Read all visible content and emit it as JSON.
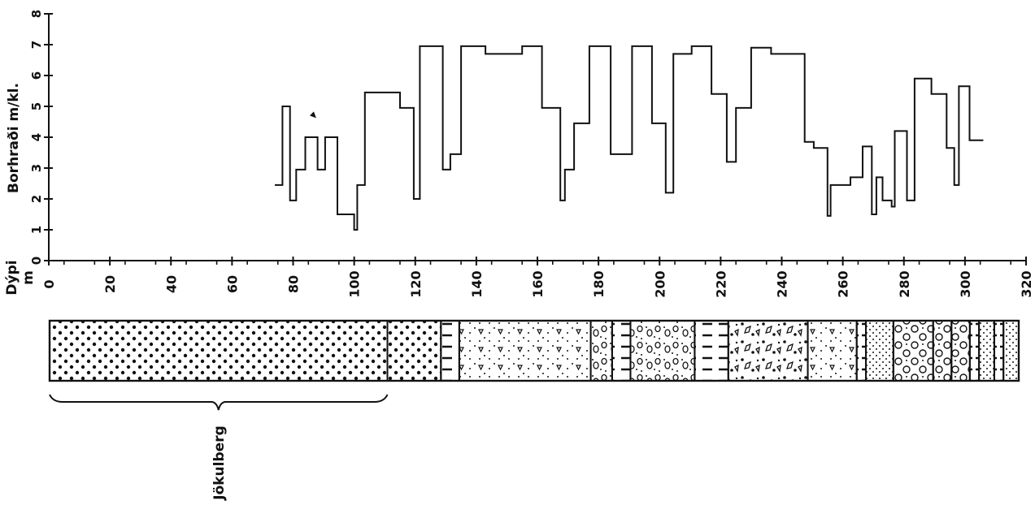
{
  "chart_data": {
    "type": "line",
    "ylabel": "Borhraði  m/kl.",
    "xlabel_line1": "Dýpi",
    "xlabel_line2": "m",
    "xlim": [
      0,
      320
    ],
    "ylim": [
      0,
      8
    ],
    "x_ticks": [
      0,
      20,
      40,
      60,
      80,
      100,
      120,
      140,
      160,
      180,
      200,
      220,
      240,
      260,
      280,
      300,
      320
    ],
    "y_ticks": [
      0,
      1,
      2,
      3,
      4,
      5,
      6,
      7,
      8
    ],
    "series": [
      {
        "points": [
          [
            74,
            2.45
          ],
          [
            76.5,
            2.45
          ],
          [
            76.5,
            5.0
          ],
          [
            79,
            5.0
          ],
          [
            79,
            1.95
          ],
          [
            81,
            1.95
          ],
          [
            81,
            2.95
          ],
          [
            84,
            2.95
          ],
          [
            84,
            4.0
          ],
          [
            88,
            4.0
          ],
          [
            88,
            2.95
          ],
          [
            90.5,
            2.95
          ],
          [
            90.5,
            4.0
          ],
          [
            94.5,
            4.0
          ],
          [
            94.5,
            1.5
          ],
          [
            100,
            1.5
          ],
          [
            100,
            1.0
          ],
          [
            101,
            1.0
          ],
          [
            101,
            2.45
          ],
          [
            103.5,
            2.45
          ],
          [
            103.5,
            5.45
          ],
          [
            115,
            5.45
          ],
          [
            115,
            4.95
          ],
          [
            119.5,
            4.95
          ],
          [
            119.5,
            2.0
          ],
          [
            121.5,
            2.0
          ],
          [
            121.5,
            6.95
          ],
          [
            129,
            6.95
          ],
          [
            129,
            2.95
          ],
          [
            131.5,
            2.95
          ],
          [
            131.5,
            3.45
          ],
          [
            135,
            3.45
          ],
          [
            135,
            6.95
          ],
          [
            143,
            6.95
          ],
          [
            143,
            6.7
          ],
          [
            155,
            6.7
          ],
          [
            155,
            6.95
          ],
          [
            161.5,
            6.95
          ],
          [
            161.5,
            4.95
          ],
          [
            167.5,
            4.95
          ],
          [
            167.5,
            1.95
          ],
          [
            169,
            1.95
          ],
          [
            169,
            2.95
          ],
          [
            172,
            2.95
          ],
          [
            172,
            4.45
          ],
          [
            177,
            4.45
          ],
          [
            177,
            6.95
          ],
          [
            184,
            6.95
          ],
          [
            184,
            3.45
          ],
          [
            191,
            3.45
          ],
          [
            191,
            6.95
          ],
          [
            197.5,
            6.95
          ],
          [
            197.5,
            4.45
          ],
          [
            202,
            4.45
          ],
          [
            202,
            2.2
          ],
          [
            204.5,
            2.2
          ],
          [
            204.5,
            6.7
          ],
          [
            210.5,
            6.7
          ],
          [
            210.5,
            6.95
          ],
          [
            217,
            6.95
          ],
          [
            217,
            5.4
          ],
          [
            222,
            5.4
          ],
          [
            222,
            3.2
          ],
          [
            225,
            3.2
          ],
          [
            225,
            4.95
          ],
          [
            230,
            4.95
          ],
          [
            230,
            6.9
          ],
          [
            236.5,
            6.9
          ],
          [
            236.5,
            6.7
          ],
          [
            247.5,
            6.7
          ],
          [
            247.5,
            3.85
          ],
          [
            250.5,
            3.85
          ],
          [
            250.5,
            3.65
          ],
          [
            255,
            3.65
          ],
          [
            255,
            1.45
          ],
          [
            256,
            1.45
          ],
          [
            256,
            2.45
          ],
          [
            262.5,
            2.45
          ],
          [
            262.5,
            2.7
          ],
          [
            266.5,
            2.7
          ],
          [
            266.5,
            3.7
          ],
          [
            269.5,
            3.7
          ],
          [
            269.5,
            1.5
          ],
          [
            271,
            1.5
          ],
          [
            271,
            2.7
          ],
          [
            273,
            2.7
          ],
          [
            273,
            1.95
          ],
          [
            276,
            1.95
          ],
          [
            276,
            1.75
          ],
          [
            277,
            1.75
          ],
          [
            277,
            4.2
          ],
          [
            281,
            4.2
          ],
          [
            281,
            1.95
          ],
          [
            283.5,
            1.95
          ],
          [
            283.5,
            5.9
          ],
          [
            289,
            5.9
          ],
          [
            289,
            5.4
          ],
          [
            294,
            5.4
          ],
          [
            294,
            3.65
          ],
          [
            296.5,
            3.65
          ],
          [
            296.5,
            2.45
          ],
          [
            298,
            2.45
          ],
          [
            298,
            5.65
          ],
          [
            301.5,
            5.65
          ],
          [
            301.5,
            3.9
          ],
          [
            306,
            3.9
          ]
        ]
      }
    ],
    "marker_point": [
      86.5,
      4.7
    ],
    "lithology_column": {
      "x_range": [
        0,
        317
      ],
      "boundaries": [
        0,
        110.5,
        128,
        134,
        177,
        184,
        190,
        211,
        222,
        248,
        264,
        267,
        276,
        289,
        295,
        301,
        304,
        309,
        312,
        317
      ],
      "bracket_range": [
        0,
        110.5
      ],
      "bracket_label": "Jökulberg"
    }
  }
}
